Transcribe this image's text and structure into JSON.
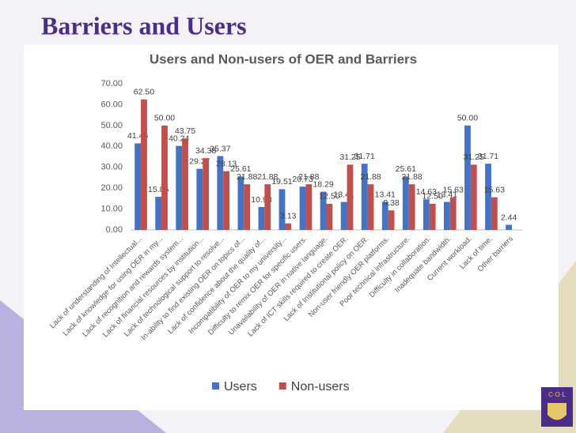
{
  "slide_title": "Barriers and Users",
  "chart_data": {
    "type": "bar",
    "title": "Users and Non-users of OER and Barriers",
    "categories": [
      "Lack of understanding of Intellectual...",
      "Lack of knowledge for using OER in my...",
      "Lack of recognition and rewards system...",
      "Lack of financial resources by institution...",
      "Lack of technological support to resolve...",
      "In-ability to find existing OER on topics of...",
      "Lack of confidence about the quality of...",
      "Incompatibility of OER to my university...",
      "Difficulty to remix OER for specific users.",
      "Unavailability of OER in native language.",
      "Lack of ICT skills required to create OER.",
      "Lack of Institutional policy on OER.",
      "Non-user friendly OER platforms.",
      "Poor technical infrastructure.",
      "Difficulty in collaboration.",
      "Inadequate bandwidth.",
      "Current workload.",
      "Lack of time.",
      "Other barriers"
    ],
    "series": [
      {
        "name": "Users",
        "color": "#4472c4",
        "values": [
          41.46,
          15.85,
          40.24,
          29.27,
          35.37,
          25.61,
          10.98,
          19.51,
          20.73,
          18.29,
          13.41,
          31.71,
          13.41,
          25.61,
          14.63,
          13.41,
          50.0,
          31.71,
          2.44
        ],
        "value_labels": [
          "41.46",
          "15.85",
          "40.24",
          "29.27",
          "35.37",
          "25.61",
          "10.98",
          "19.51",
          "20.73",
          "18.29",
          "13.41",
          "31.71",
          "13.41",
          "25.61",
          "14.63",
          "13.41",
          "50.00",
          "31.71",
          "2.44"
        ]
      },
      {
        "name": "Non-users",
        "color": "#c0504d",
        "values": [
          62.5,
          50.0,
          43.75,
          34.38,
          28.13,
          21.88,
          21.88,
          3.13,
          21.88,
          12.5,
          31.25,
          21.88,
          9.38,
          21.88,
          12.5,
          15.63,
          31.25,
          15.63,
          null
        ],
        "value_labels": [
          "62.50",
          "50.00",
          "43.75",
          "34.38",
          "28.13",
          "21.88",
          "21.88",
          "3.13",
          "21.88",
          "12.50",
          "31.25",
          "21.88",
          "9.38",
          "21.88",
          "12.50",
          "15.63",
          "31.25",
          "15.63",
          null
        ]
      }
    ],
    "ylim": [
      0,
      70
    ],
    "yticks": [
      {
        "value": 0,
        "label": "0.00"
      },
      {
        "value": 10,
        "label": "10.00"
      },
      {
        "value": 20,
        "label": "20.00"
      },
      {
        "value": 30,
        "label": "30.00"
      },
      {
        "value": 40,
        "label": "40.00"
      },
      {
        "value": 50,
        "label": "50.00"
      },
      {
        "value": 60,
        "label": "60.00"
      },
      {
        "value": 70,
        "label": "70.00"
      }
    ],
    "legend": "bottom"
  }
}
